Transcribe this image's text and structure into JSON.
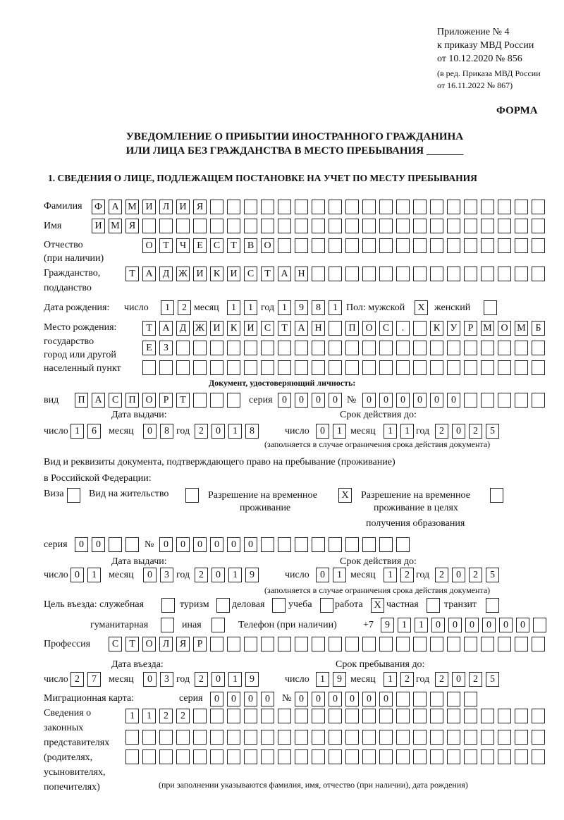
{
  "header": {
    "line1": "Приложение № 4",
    "line2": "к приказу МВД России",
    "line3": "от 10.12.2020 № 856",
    "line4": "(в ред. Приказа МВД России",
    "line5": "от 16.11.2022 № 867)",
    "form": "ФОРМА"
  },
  "title": {
    "line1": "УВЕДОМЛЕНИЕ О ПРИБЫТИИ ИНОСТРАННОГО ГРАЖДАНИНА",
    "line2": "ИЛИ ЛИЦА БЕЗ ГРАЖДАНСТВА В МЕСТО ПРЕБЫВАНИЯ _______"
  },
  "section1": "1. СВЕДЕНИЯ О ЛИЦЕ, ПОДЛЕЖАЩЕМ ПОСТАНОВКЕ НА УЧЕТ ПО МЕСТУ ПРЕБЫВАНИЯ",
  "labels": {
    "surname": "Фамилия",
    "name": "Имя",
    "patronymic1": "Отчество",
    "patronymic2": "(при наличии)",
    "citizenship1": "Гражданство,",
    "citizenship2": "подданство",
    "birth_date": "Дата рождения:",
    "day": "число",
    "month": "месяц",
    "year": "год",
    "sex": "Пол: мужской",
    "female": "женский",
    "birthplace1": "Место рождения:",
    "birthplace2": "государство",
    "birthplace3": "город или другой",
    "birthplace4": "населенный пункт",
    "id_doc": "Документ, удостоверяющий личность:",
    "kind": "вид",
    "series": "серия",
    "number": "№",
    "issue_date": "Дата выдачи:",
    "valid_until": "Срок действия до:",
    "validity_note": "(заполняется в случае ограничения срока действия документа)",
    "stay_doc1": "Вид и реквизиты документа, подтверждающего право на пребывание (проживание)",
    "stay_doc2": "в Российской Федерации:",
    "visa": "Виза",
    "residence": "Вид на жительство",
    "trp1": "Разрешение на временное",
    "trp2": "проживание",
    "trpe1": "Разрешение на временное",
    "trpe2": "проживание в целях",
    "trpe3": "получения образования",
    "purpose": "Цель въезда: служебная",
    "tourism": "туризм",
    "business": "деловая",
    "study": "учеба",
    "work": "работа",
    "private": "частная",
    "transit": "транзит",
    "humanitarian": "гуманитарная",
    "other": "иная",
    "phone": "Телефон (при наличии)",
    "phone_prefix": "+7",
    "profession": "Профессия",
    "entry_date": "Дата въезда:",
    "stay_until": "Срок пребывания до:",
    "migration_card": "Миграционная карта:",
    "reps1": "Сведения о",
    "reps2": "законных",
    "reps3": "представителях",
    "reps4": "(родителях,",
    "reps5": "усыновителях,",
    "reps6": "попечителях)",
    "reps_note": "(при заполнении указываются фамилия, имя, отчество (при наличии), дата рождения)"
  },
  "values": {
    "surname": "ФАМИЛИЯ",
    "name": "ИМЯ",
    "patronymic": "ОТЧЕСТВО",
    "citizenship": "ТАДЖИКИСТАН",
    "birth_day": "12",
    "birth_month": "11",
    "birth_year": "1981",
    "male": "X",
    "female": "",
    "birthplace1": "ТАДЖИКИСТАН ПОС. КУРМОМБ",
    "birthplace2": "ЕЗ",
    "birthplace3": "",
    "doc_kind": "ПАСПОРТ",
    "doc_series": "0000",
    "doc_number": "000000",
    "doc_issue_day": "16",
    "doc_issue_month": "08",
    "doc_issue_year": "2018",
    "doc_valid_day": "01",
    "doc_valid_month": "11",
    "doc_valid_year": "2025",
    "visa": "",
    "residence": "",
    "trp": "X",
    "trpe": "",
    "stay_series": "00",
    "stay_number": "000000",
    "stay_issue_day": "01",
    "stay_issue_month": "03",
    "stay_issue_year": "2019",
    "stay_valid_day": "01",
    "stay_valid_month": "12",
    "stay_valid_year": "2025",
    "p_official": "",
    "p_tourism": "",
    "p_business": "",
    "p_study": "",
    "p_work": "X",
    "p_private": "",
    "p_transit": "",
    "p_humanitarian": "",
    "p_other": "",
    "phone": "911000000",
    "profession": "СТОЛЯР",
    "entry_day": "27",
    "entry_month": "03",
    "entry_year": "2019",
    "stay_until_day": "19",
    "stay_until_month": "12",
    "stay_until_year": "2025",
    "mc_series": "0000",
    "mc_number": "000000",
    "reps1": "1122",
    "reps2": "",
    "reps3": ""
  }
}
